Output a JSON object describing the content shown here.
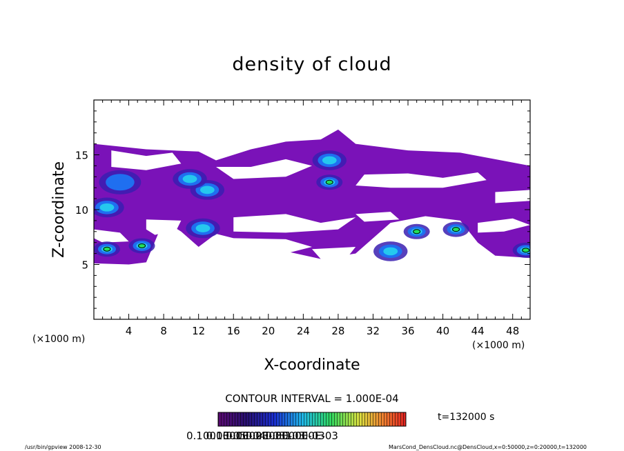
{
  "chart_data": {
    "type": "heatmap",
    "title": "density of cloud",
    "xlabel": "X-coordinate",
    "ylabel": "Z-coordinate",
    "x_unit": "(×1000 m)",
    "y_unit": "(×1000 m)",
    "xlim": [
      0,
      50
    ],
    "ylim": [
      0,
      20
    ],
    "x_ticks": [
      4,
      8,
      12,
      16,
      20,
      24,
      28,
      32,
      36,
      40,
      44,
      48
    ],
    "y_ticks": [
      5,
      10,
      15
    ],
    "contour_interval_label": "CONTOUR INTERVAL = 1.000E-04",
    "time_label": "t=132000 s",
    "colorbar_labels": [
      "0.1000E-05",
      "0.1000E-04",
      "0.1000E-03",
      "0.2000E-03",
      "0.3000E-03",
      "1.000E-03"
    ],
    "colors": {
      "low": "#7a12b8",
      "mid": "#1f4fe0",
      "high": "#22e05a",
      "contour": "#000000"
    },
    "cloud_regions": [
      {
        "x": 3,
        "z": 12.5,
        "level": "low"
      },
      {
        "x": 13,
        "z": 11.8,
        "level": "mid"
      },
      {
        "x": 27,
        "z": 14.5,
        "level": "mid"
      },
      {
        "x": 27,
        "z": 12.5,
        "level": "high"
      },
      {
        "x": 11,
        "z": 12.8,
        "level": "mid"
      },
      {
        "x": 1.5,
        "z": 10.2,
        "level": "mid"
      },
      {
        "x": 1.5,
        "z": 6.4,
        "level": "high"
      },
      {
        "x": 5.5,
        "z": 6.7,
        "level": "high"
      },
      {
        "x": 12.5,
        "z": 8.3,
        "level": "mid"
      },
      {
        "x": 34,
        "z": 6.2,
        "level": "mid"
      },
      {
        "x": 37,
        "z": 8.0,
        "level": "high"
      },
      {
        "x": 41.5,
        "z": 8.2,
        "level": "high"
      },
      {
        "x": 49.5,
        "z": 6.3,
        "level": "high"
      }
    ]
  },
  "footer": {
    "left": "/usr/bin/gpview   2008-12-30",
    "right": "MarsCond_DensCloud.nc@DensCloud,x=0:50000,z=0:20000,t=132000"
  }
}
